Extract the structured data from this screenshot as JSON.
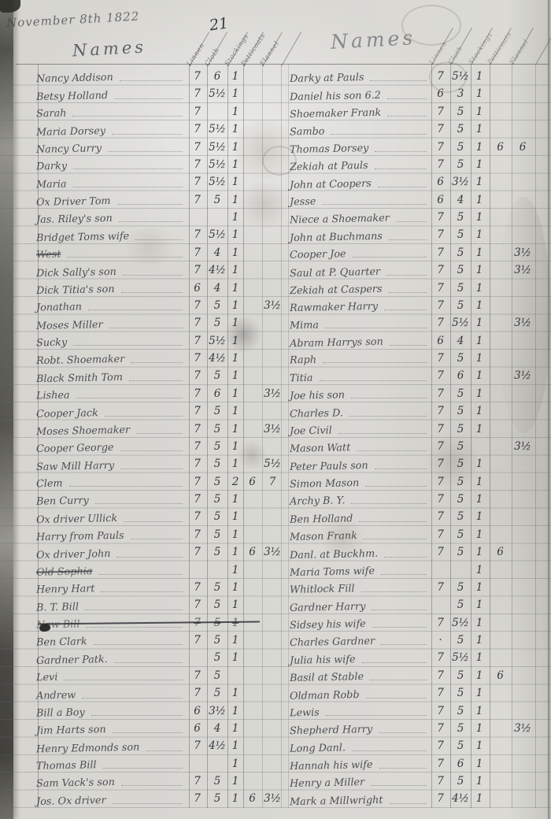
{
  "page": {
    "date_line": "November 8th 1822",
    "page_number": "21",
    "names_header": "Names",
    "column_headers": [
      "Linnen",
      "Cloth",
      "Stockings",
      "Petticoats",
      "Flannel"
    ],
    "ink_color": "#34343c",
    "paper_color": "#d7d6d1"
  },
  "left_table": {
    "rows": [
      {
        "n": "Nancy Addison",
        "v": [
          "7",
          "6",
          "1",
          "",
          ""
        ]
      },
      {
        "n": "Betsy Holland",
        "v": [
          "7",
          "5½",
          "1",
          "",
          ""
        ]
      },
      {
        "n": "Sarah",
        "v": [
          "7",
          "",
          "1",
          "",
          ""
        ]
      },
      {
        "n": "Maria Dorsey",
        "v": [
          "7",
          "5½",
          "1",
          "",
          ""
        ]
      },
      {
        "n": "Nancy Curry",
        "v": [
          "7",
          "5½",
          "1",
          "",
          ""
        ]
      },
      {
        "n": "Darky",
        "v": [
          "7",
          "5½",
          "1",
          "",
          ""
        ]
      },
      {
        "n": "Maria",
        "v": [
          "7",
          "5½",
          "1",
          "",
          ""
        ]
      },
      {
        "n": "Ox Driver Tom",
        "v": [
          "7",
          "5",
          "1",
          "",
          ""
        ]
      },
      {
        "n": "Jas. Riley's son",
        "v": [
          "",
          "",
          "1",
          "",
          ""
        ]
      },
      {
        "n": "Bridget Toms wife",
        "v": [
          "7",
          "5½",
          "1",
          "",
          ""
        ]
      },
      {
        "n": "West",
        "v": [
          "7",
          "4",
          "1",
          "",
          ""
        ],
        "strike": "name"
      },
      {
        "n": "Dick Sally's son",
        "v": [
          "7",
          "4½",
          "1",
          "",
          ""
        ]
      },
      {
        "n": "Dick Titia's son",
        "v": [
          "6",
          "4",
          "1",
          "",
          ""
        ]
      },
      {
        "n": "Jonathan",
        "v": [
          "7",
          "5",
          "1",
          "",
          "3½"
        ]
      },
      {
        "n": "Moses Miller",
        "v": [
          "7",
          "5",
          "1",
          "",
          ""
        ]
      },
      {
        "n": "Sucky",
        "v": [
          "7",
          "5½",
          "1",
          "",
          ""
        ]
      },
      {
        "n": "Robt. Shoemaker",
        "v": [
          "7",
          "4½",
          "1",
          "",
          ""
        ]
      },
      {
        "n": "Black Smith Tom",
        "v": [
          "7",
          "5",
          "1",
          "",
          ""
        ]
      },
      {
        "n": "Lishea",
        "v": [
          "7",
          "6",
          "1",
          "",
          "3½"
        ]
      },
      {
        "n": "Cooper Jack",
        "v": [
          "7",
          "5",
          "1",
          "",
          ""
        ]
      },
      {
        "n": "Moses Shoemaker",
        "v": [
          "7",
          "5",
          "1",
          "",
          "3½"
        ]
      },
      {
        "n": "Cooper George",
        "v": [
          "7",
          "5",
          "1",
          "",
          ""
        ]
      },
      {
        "n": "Saw Mill Harry",
        "v": [
          "7",
          "5",
          "1",
          "",
          "5½"
        ]
      },
      {
        "n": "Clem",
        "v": [
          "7",
          "5",
          "2",
          "6",
          "7"
        ]
      },
      {
        "n": "Ben Curry",
        "v": [
          "7",
          "5",
          "1",
          "",
          ""
        ]
      },
      {
        "n": "Ox driver Ullick",
        "v": [
          "7",
          "5",
          "1",
          "",
          ""
        ]
      },
      {
        "n": "Harry from Pauls",
        "v": [
          "7",
          "5",
          "1",
          "",
          ""
        ]
      },
      {
        "n": "Ox driver John",
        "v": [
          "7",
          "5",
          "1",
          "6",
          "3½"
        ]
      },
      {
        "n": "Old Sophia",
        "v": [
          "",
          "",
          "1",
          "",
          ""
        ],
        "strike": "name"
      },
      {
        "n": "Henry Hart",
        "v": [
          "7",
          "5",
          "1",
          "",
          ""
        ]
      },
      {
        "n": "B. T. Bill",
        "v": [
          "7",
          "5",
          "1",
          "",
          ""
        ]
      },
      {
        "n": "New Bill",
        "v": [
          "7",
          "5",
          "1",
          "",
          ""
        ],
        "strike": "row"
      },
      {
        "n": "Ben Clark",
        "v": [
          "7",
          "5",
          "1",
          "",
          ""
        ]
      },
      {
        "n": "Gardner Patk.",
        "v": [
          "",
          "5",
          "1",
          "",
          ""
        ]
      },
      {
        "n": "Levi",
        "v": [
          "7",
          "5",
          "",
          "",
          ""
        ]
      },
      {
        "n": "Andrew",
        "v": [
          "7",
          "5",
          "1",
          "",
          ""
        ]
      },
      {
        "n": "Bill a Boy",
        "v": [
          "6",
          "3½",
          "1",
          "",
          ""
        ]
      },
      {
        "n": "Jim Harts son",
        "v": [
          "6",
          "4",
          "1",
          "",
          ""
        ]
      },
      {
        "n": "Henry Edmonds son",
        "v": [
          "7",
          "4½",
          "1",
          "",
          ""
        ]
      },
      {
        "n": "Thomas Bill",
        "v": [
          "",
          "",
          "1",
          "",
          ""
        ]
      },
      {
        "n": "Sam Vack's son",
        "v": [
          "7",
          "5",
          "1",
          "",
          ""
        ]
      },
      {
        "n": "Jos. Ox driver",
        "v": [
          "7",
          "5",
          "1",
          "6",
          "3½"
        ]
      }
    ]
  },
  "right_table": {
    "rows": [
      {
        "n": "Darky at Pauls",
        "v": [
          "7",
          "5½",
          "1",
          "",
          ""
        ]
      },
      {
        "n": "Daniel his son 6.2",
        "v": [
          "6",
          "3",
          "1",
          "",
          ""
        ]
      },
      {
        "n": "Shoemaker Frank",
        "v": [
          "7",
          "5",
          "1",
          "",
          ""
        ]
      },
      {
        "n": "Sambo",
        "v": [
          "7",
          "5",
          "1",
          "",
          ""
        ]
      },
      {
        "n": "Thomas Dorsey",
        "v": [
          "7",
          "5",
          "1",
          "6",
          "6"
        ]
      },
      {
        "n": "Zekiah at Pauls",
        "v": [
          "7",
          "5",
          "1",
          "",
          ""
        ]
      },
      {
        "n": "John at Coopers",
        "v": [
          "6",
          "3½",
          "1",
          "",
          ""
        ]
      },
      {
        "n": "Jesse",
        "v": [
          "6",
          "4",
          "1",
          "",
          ""
        ]
      },
      {
        "n": "Niece a Shoemaker",
        "v": [
          "7",
          "5",
          "1",
          "",
          ""
        ]
      },
      {
        "n": "John at Buchmans",
        "v": [
          "7",
          "5",
          "1",
          "",
          ""
        ]
      },
      {
        "n": "Cooper Joe",
        "v": [
          "7",
          "5",
          "1",
          "",
          "3½"
        ]
      },
      {
        "n": "Saul at P. Quarter",
        "v": [
          "7",
          "5",
          "1",
          "",
          "3½"
        ]
      },
      {
        "n": "Zekiah at Caspers",
        "v": [
          "7",
          "5",
          "1",
          "",
          ""
        ]
      },
      {
        "n": "Rawmaker Harry",
        "v": [
          "7",
          "5",
          "1",
          "",
          ""
        ]
      },
      {
        "n": "Mima",
        "v": [
          "7",
          "5½",
          "1",
          "",
          "3½"
        ]
      },
      {
        "n": "Abram Harrys son",
        "v": [
          "6",
          "4",
          "1",
          "",
          ""
        ]
      },
      {
        "n": "Raph",
        "v": [
          "7",
          "5",
          "1",
          "",
          ""
        ]
      },
      {
        "n": "Titia",
        "v": [
          "7",
          "6",
          "1",
          "",
          "3½"
        ]
      },
      {
        "n": "Joe his son",
        "v": [
          "7",
          "5",
          "1",
          "",
          ""
        ]
      },
      {
        "n": "Charles D.",
        "v": [
          "7",
          "5",
          "1",
          "",
          ""
        ]
      },
      {
        "n": "Joe Civil",
        "v": [
          "7",
          "5",
          "1",
          "",
          ""
        ]
      },
      {
        "n": "Mason Watt",
        "v": [
          "7",
          "5",
          "",
          "",
          "3½"
        ]
      },
      {
        "n": "Peter Pauls son",
        "v": [
          "7",
          "5",
          "1",
          "",
          ""
        ]
      },
      {
        "n": "Simon Mason",
        "v": [
          "7",
          "5",
          "1",
          "",
          ""
        ]
      },
      {
        "n": "Archy B. Y.",
        "v": [
          "7",
          "5",
          "1",
          "",
          ""
        ]
      },
      {
        "n": "Ben Holland",
        "v": [
          "7",
          "5",
          "1",
          "",
          ""
        ]
      },
      {
        "n": "Mason Frank",
        "v": [
          "7",
          "5",
          "1",
          "",
          ""
        ]
      },
      {
        "n": "Danl. at Buckhm.",
        "v": [
          "7",
          "5",
          "1",
          "6",
          ""
        ]
      },
      {
        "n": "Maria Toms wife",
        "v": [
          "",
          "",
          "1",
          "",
          ""
        ]
      },
      {
        "n": "Whitlock Fill",
        "v": [
          "7",
          "5",
          "1",
          "",
          ""
        ]
      },
      {
        "n": "Gardner Harry",
        "v": [
          "",
          "5",
          "1",
          "",
          ""
        ]
      },
      {
        "n": "Sidsey his wife",
        "v": [
          "7",
          "5½",
          "1",
          "",
          ""
        ]
      },
      {
        "n": "Charles Gardner",
        "v": [
          "·",
          "5",
          "1",
          "",
          ""
        ]
      },
      {
        "n": "Julia his wife",
        "v": [
          "7",
          "5½",
          "1",
          "",
          ""
        ]
      },
      {
        "n": "Basil at Stable",
        "v": [
          "7",
          "5",
          "1",
          "6",
          ""
        ]
      },
      {
        "n": "Oldman Robb",
        "v": [
          "7",
          "5",
          "1",
          "",
          ""
        ]
      },
      {
        "n": "Lewis",
        "v": [
          "7",
          "5",
          "1",
          "",
          ""
        ]
      },
      {
        "n": "Shepherd Harry",
        "v": [
          "7",
          "5",
          "1",
          "",
          "3½"
        ]
      },
      {
        "n": "Long Danl.",
        "v": [
          "7",
          "5",
          "1",
          "",
          ""
        ]
      },
      {
        "n": "Hannah his wife",
        "v": [
          "7",
          "6",
          "1",
          "",
          ""
        ]
      },
      {
        "n": "Henry a Miller",
        "v": [
          "7",
          "5",
          "1",
          "",
          ""
        ]
      },
      {
        "n": "Mark a Millwright",
        "v": [
          "7",
          "4½",
          "1",
          "",
          ""
        ]
      }
    ]
  }
}
